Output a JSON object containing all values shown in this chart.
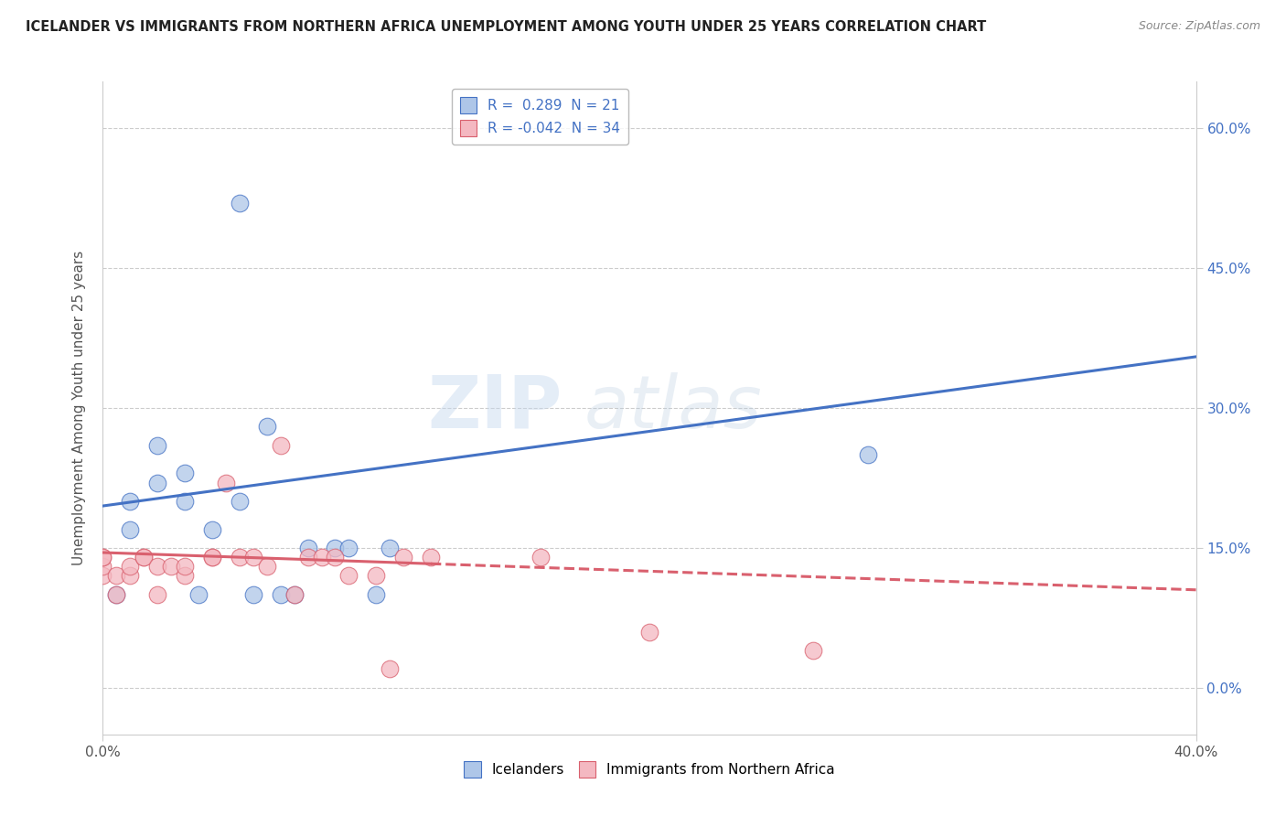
{
  "title": "ICELANDER VS IMMIGRANTS FROM NORTHERN AFRICA UNEMPLOYMENT AMONG YOUTH UNDER 25 YEARS CORRELATION CHART",
  "source": "Source: ZipAtlas.com",
  "ylabel": "Unemployment Among Youth under 25 years",
  "xlim": [
    0.0,
    0.4
  ],
  "ylim": [
    -0.05,
    0.65
  ],
  "yticks": [
    0.0,
    0.15,
    0.3,
    0.45,
    0.6
  ],
  "ytick_labels": [
    "0.0%",
    "15.0%",
    "30.0%",
    "45.0%",
    "60.0%"
  ],
  "xticks": [
    0.0,
    0.4
  ],
  "xtick_labels": [
    "0.0%",
    "40.0%"
  ],
  "legend_entries": [
    {
      "label": "R =  0.289  N = 21"
    },
    {
      "label": "R = -0.042  N = 34"
    }
  ],
  "icelanders_x": [
    0.005,
    0.01,
    0.01,
    0.02,
    0.02,
    0.03,
    0.03,
    0.035,
    0.04,
    0.05,
    0.055,
    0.06,
    0.065,
    0.07,
    0.075,
    0.085,
    0.09,
    0.1,
    0.105,
    0.28,
    0.05
  ],
  "icelanders_y": [
    0.1,
    0.17,
    0.2,
    0.22,
    0.26,
    0.2,
    0.23,
    0.1,
    0.17,
    0.2,
    0.1,
    0.28,
    0.1,
    0.1,
    0.15,
    0.15,
    0.15,
    0.1,
    0.15,
    0.25,
    0.52
  ],
  "immigrants_x": [
    0.0,
    0.0,
    0.0,
    0.0,
    0.005,
    0.005,
    0.01,
    0.01,
    0.015,
    0.015,
    0.02,
    0.02,
    0.025,
    0.03,
    0.03,
    0.04,
    0.04,
    0.045,
    0.05,
    0.055,
    0.06,
    0.065,
    0.07,
    0.075,
    0.08,
    0.085,
    0.09,
    0.1,
    0.105,
    0.11,
    0.12,
    0.16,
    0.2,
    0.26
  ],
  "immigrants_y": [
    0.12,
    0.13,
    0.14,
    0.14,
    0.1,
    0.12,
    0.12,
    0.13,
    0.14,
    0.14,
    0.1,
    0.13,
    0.13,
    0.12,
    0.13,
    0.14,
    0.14,
    0.22,
    0.14,
    0.14,
    0.13,
    0.26,
    0.1,
    0.14,
    0.14,
    0.14,
    0.12,
    0.12,
    0.02,
    0.14,
    0.14,
    0.14,
    0.06,
    0.04
  ],
  "blue_color": "#aec6e8",
  "pink_color": "#f4b8c1",
  "blue_line_color": "#4472c4",
  "pink_line_color": "#d9606e",
  "watermark_zip": "ZIP",
  "watermark_atlas": "atlas",
  "background_color": "#ffffff",
  "grid_color": "#cccccc"
}
